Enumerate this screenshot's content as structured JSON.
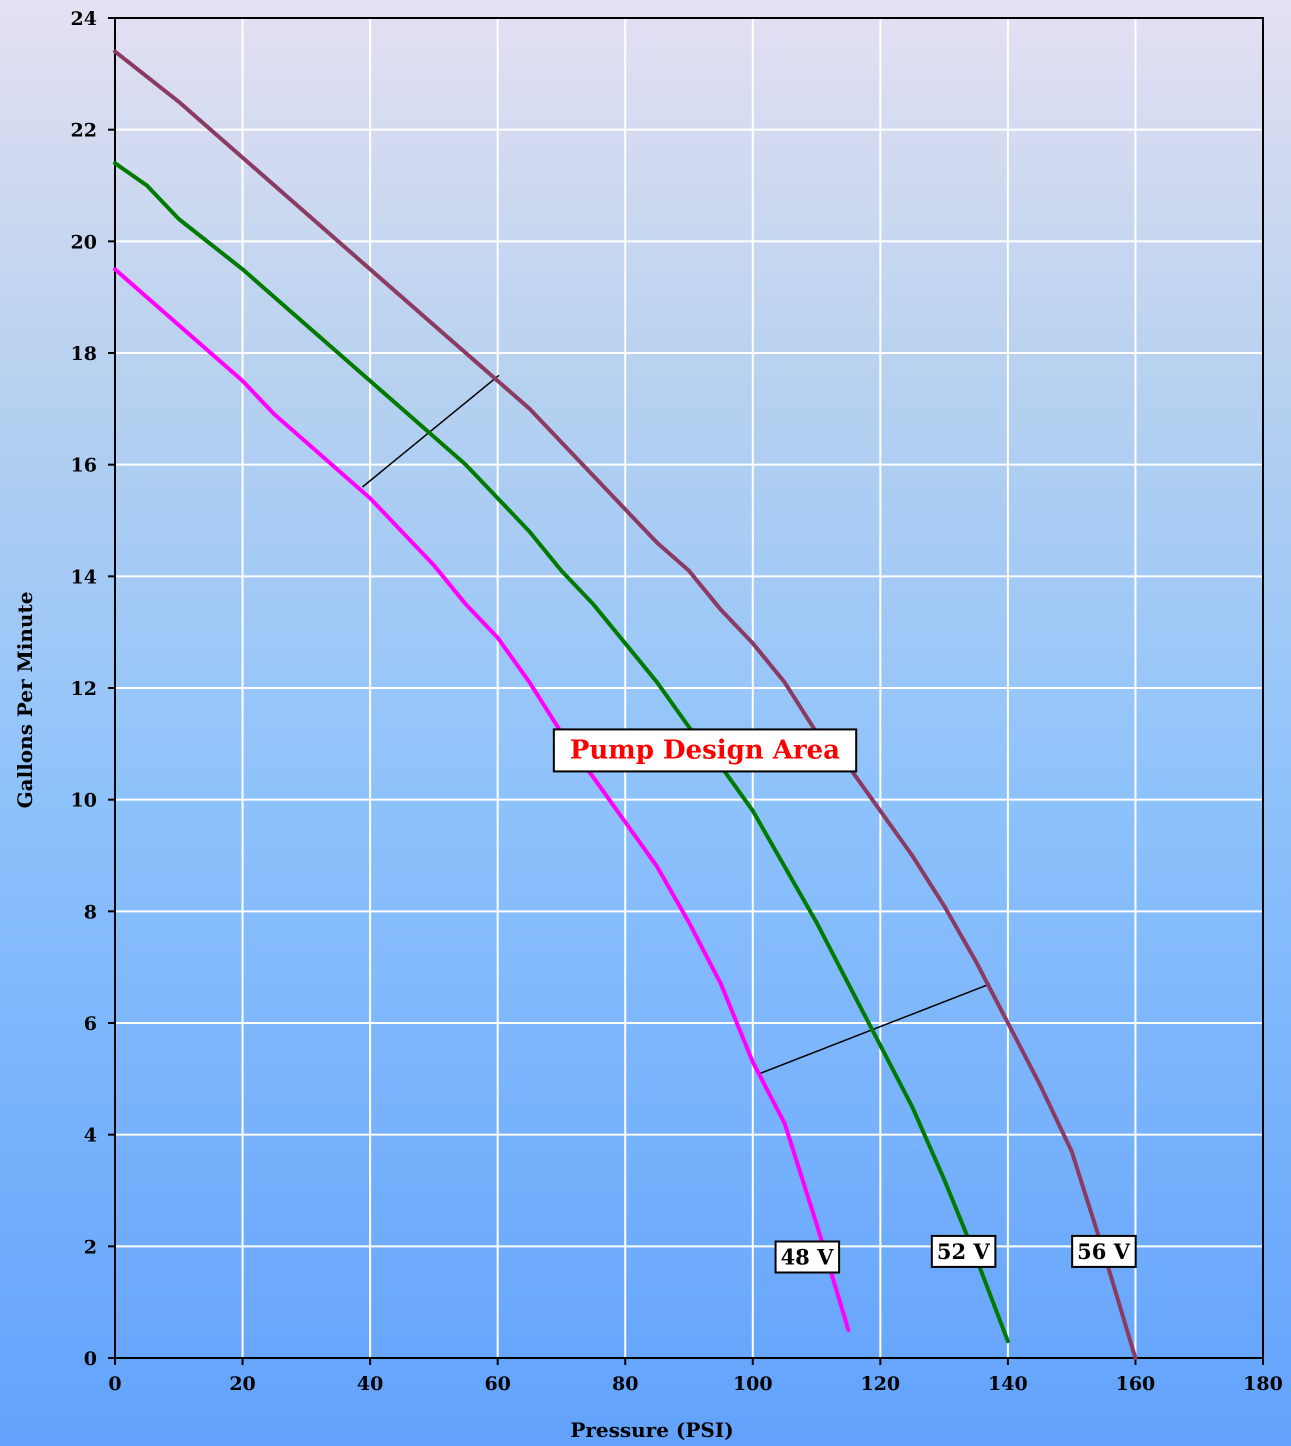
{
  "chart_data": {
    "type": "line",
    "title": "",
    "xlabel": "Pressure (PSI)",
    "ylabel": "Gallons Per Minute",
    "xlim": [
      0,
      180
    ],
    "ylim": [
      0,
      24
    ],
    "x_ticks": [
      0,
      20,
      40,
      60,
      80,
      100,
      120,
      140,
      160,
      180
    ],
    "y_ticks": [
      0,
      2,
      4,
      6,
      8,
      10,
      12,
      14,
      16,
      18,
      20,
      22,
      24
    ],
    "grid": true,
    "legend": "none",
    "series": [
      {
        "name": "48 V",
        "color": "#ff00ff",
        "label_at": [
          108.5,
          1.8
        ],
        "x": [
          0,
          10,
          20,
          25,
          30,
          35,
          40,
          45,
          50,
          55,
          60,
          65,
          70,
          75,
          80,
          85,
          90,
          95,
          100,
          105,
          110,
          115
        ],
        "y": [
          19.5,
          18.5,
          17.5,
          16.9,
          16.4,
          15.9,
          15.4,
          14.8,
          14.2,
          13.5,
          12.9,
          12.1,
          11.2,
          10.4,
          9.6,
          8.8,
          7.8,
          6.7,
          5.3,
          4.2,
          2.4,
          0.5
        ]
      },
      {
        "name": "52 V",
        "color": "#007a00",
        "label_at": [
          133,
          1.9
        ],
        "x": [
          0,
          5,
          10,
          20,
          30,
          40,
          50,
          55,
          60,
          65,
          70,
          75,
          80,
          85,
          90,
          95,
          100,
          105,
          110,
          115,
          120,
          125,
          130,
          135,
          140
        ],
        "y": [
          21.4,
          21.0,
          20.4,
          19.5,
          18.5,
          17.5,
          16.5,
          16.0,
          15.4,
          14.8,
          14.1,
          13.5,
          12.8,
          12.1,
          11.3,
          10.6,
          9.8,
          8.8,
          7.8,
          6.7,
          5.6,
          4.5,
          3.2,
          1.8,
          0.3
        ]
      },
      {
        "name": "56 V",
        "color": "#8b3a62",
        "label_at": [
          155,
          1.9
        ],
        "x": [
          0,
          10,
          15,
          20,
          30,
          40,
          50,
          60,
          65,
          70,
          75,
          80,
          85,
          90,
          95,
          100,
          105,
          110,
          115,
          120,
          125,
          130,
          135,
          140,
          145,
          150,
          155,
          160
        ],
        "y": [
          23.4,
          22.5,
          22.0,
          21.5,
          20.5,
          19.5,
          18.5,
          17.5,
          17.0,
          16.4,
          15.8,
          15.2,
          14.6,
          14.1,
          13.4,
          12.8,
          12.1,
          11.2,
          10.6,
          9.8,
          9.0,
          8.1,
          7.1,
          6.0,
          4.9,
          3.7,
          1.9,
          0.0
        ]
      }
    ],
    "annotations": [
      {
        "text": "Pump Design Area",
        "color": "#ff0000",
        "at": [
          92.5,
          10.9
        ]
      }
    ],
    "boundary_lines": [
      {
        "from": [
          38.8,
          15.6
        ],
        "to": [
          60.2,
          17.6
        ]
      },
      {
        "from": [
          101.2,
          5.1
        ],
        "to": [
          137.2,
          6.7
        ]
      }
    ]
  }
}
